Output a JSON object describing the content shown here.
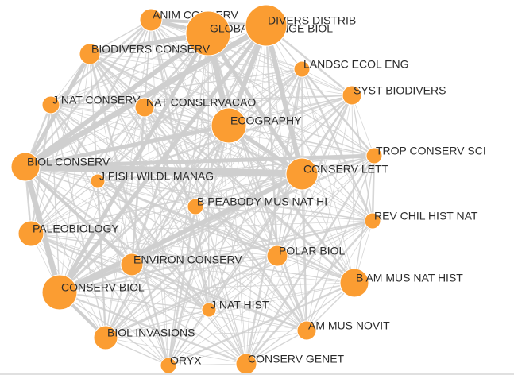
{
  "nodes": [
    {
      "label": "ANIM CONSERV"
    },
    {
      "label": "GLOBAL CHANGE BIOL"
    },
    {
      "label": "DIVERS DISTRIB"
    },
    {
      "label": "BIODIVERS CONSERV"
    },
    {
      "label": "LANDSC ECOL ENG"
    },
    {
      "label": "J NAT CONSERV"
    },
    {
      "label": "NAT CONSERVACAO"
    },
    {
      "label": "SYST BIODIVERS"
    },
    {
      "label": "ECOGRAPHY"
    },
    {
      "label": "TROP CONSERV SCI"
    },
    {
      "label": "BIOL CONSERV"
    },
    {
      "label": "CONSERV LETT"
    },
    {
      "label": "J FISH WILDL MANAG"
    },
    {
      "label": "B PEABODY MUS NAT HI"
    },
    {
      "label": "REV CHIL HIST NAT"
    },
    {
      "label": "PALEOBIOLOGY"
    },
    {
      "label": "ENVIRON CONSERV"
    },
    {
      "label": "POLAR BIOL"
    },
    {
      "label": "B AM MUS NAT HIST"
    },
    {
      "label": "CONSERV BIOL"
    },
    {
      "label": "J NAT HIST"
    },
    {
      "label": "AM MUS NOVIT"
    },
    {
      "label": "BIOL INVASIONS"
    },
    {
      "label": "ORYX"
    },
    {
      "label": "CONSERV GENET"
    }
  ]
}
